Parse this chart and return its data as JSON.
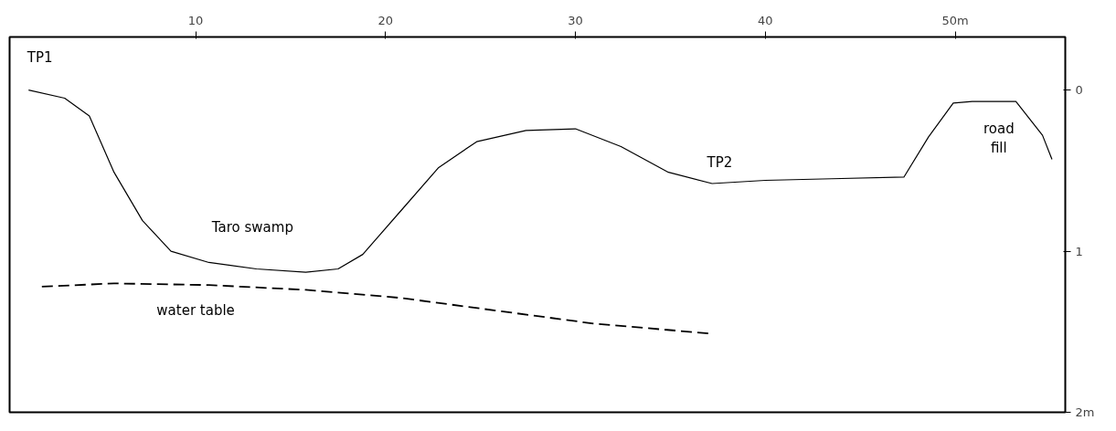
{
  "chart_data": {
    "type": "line",
    "xlim": [
      0.2,
      55.8
    ],
    "ylim": [
      2,
      -0.33
    ],
    "xticks": [
      10,
      20,
      30,
      40,
      {
        "value": 50,
        "label": "50m"
      }
    ],
    "yticks": [
      0,
      1,
      {
        "value": 2,
        "label": "2m"
      }
    ],
    "grid": false,
    "series": [
      {
        "color": "#000000",
        "line_style": "solid",
        "x": [
          1.2,
          3.1,
          4.4,
          5.7,
          7.2,
          8.7,
          10.7,
          13.2,
          15.8,
          17.5,
          18.8,
          20.8,
          22.8,
          24.8,
          27.4,
          30,
          32.4,
          34.9,
          37.2,
          40,
          43.5,
          47.3,
          48.6,
          49.9,
          50.9,
          53.2,
          54.6,
          55.1
        ],
        "values": [
          0,
          0.05,
          0.16,
          0.51,
          0.81,
          1.0,
          1.07,
          1.11,
          1.13,
          1.11,
          1.02,
          0.75,
          0.48,
          0.32,
          0.25,
          0.24,
          0.35,
          0.51,
          0.58,
          0.56,
          0.55,
          0.54,
          0.29,
          0.08,
          0.07,
          0.07,
          0.28,
          0.43
        ]
      },
      {
        "color": "#000000",
        "line_style": "dashed",
        "x": [
          1.9,
          5.7,
          10.7,
          15.8,
          20.8,
          25.9,
          31,
          37
        ],
        "values": [
          1.22,
          1.2,
          1.21,
          1.24,
          1.29,
          1.37,
          1.45,
          1.51
        ]
      }
    ],
    "annotations": [
      "TP1",
      "TP2",
      "Taro swamp",
      "water table",
      "road\nfill"
    ]
  }
}
